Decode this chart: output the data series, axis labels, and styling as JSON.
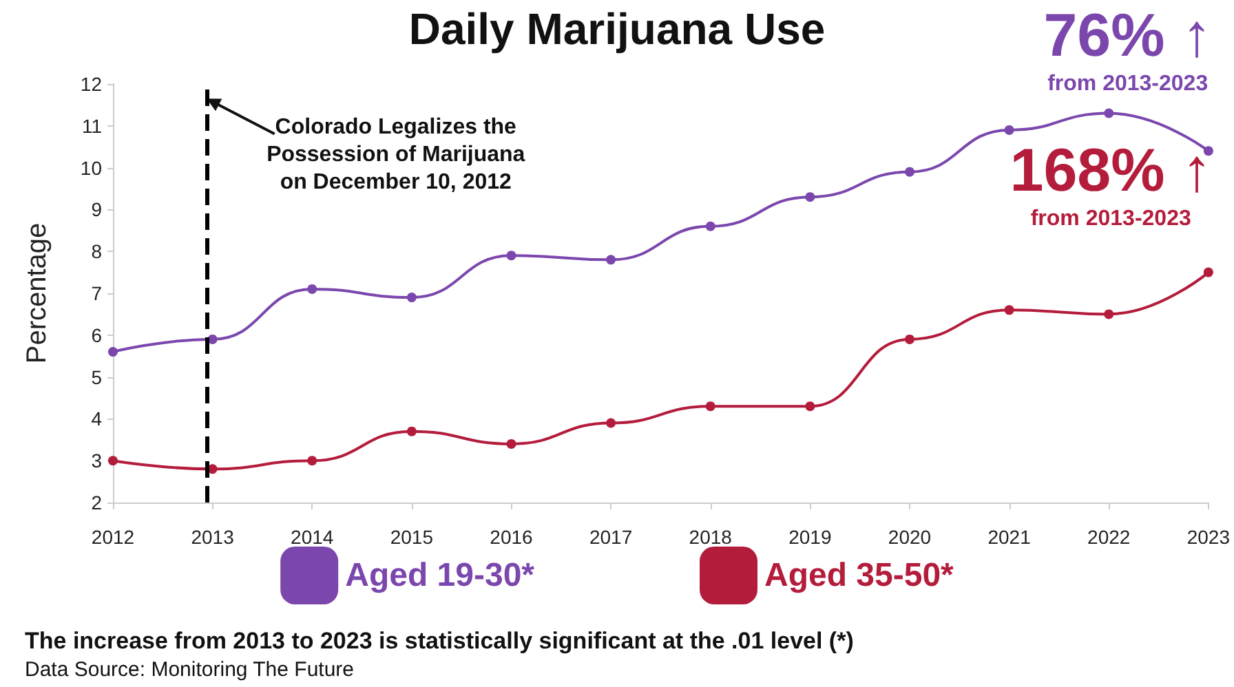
{
  "chart_data": {
    "type": "line",
    "title": "Daily Marijuana Use",
    "ylabel": "Percentage",
    "x": [
      2012,
      2013,
      2014,
      2015,
      2016,
      2017,
      2018,
      2019,
      2020,
      2021,
      2022,
      2023
    ],
    "series": [
      {
        "name": "Aged 19-30*",
        "color": "#7b47ad",
        "values": [
          5.6,
          5.9,
          7.1,
          6.9,
          7.9,
          7.8,
          8.6,
          9.3,
          9.9,
          10.9,
          11.3,
          10.4
        ]
      },
      {
        "name": "Aged 35-50*",
        "color": "#b41c3c",
        "values": [
          3.0,
          2.8,
          3.0,
          3.7,
          3.4,
          3.9,
          4.3,
          4.3,
          5.9,
          6.6,
          6.5,
          7.5
        ]
      }
    ],
    "xlim": [
      2012,
      2023
    ],
    "xticks": [
      2012,
      2013,
      2014,
      2015,
      2016,
      2017,
      2018,
      2019,
      2020,
      2021,
      2022,
      2023
    ],
    "ylim": [
      2,
      12
    ],
    "yticks": [
      2,
      3,
      4,
      5,
      6,
      7,
      8,
      9,
      10,
      11,
      12
    ],
    "ref_lines": [
      {
        "axis": "x",
        "value": 2012.94,
        "label": "Colorado Legalizes the\nPossession of Marijuana\non December 10, 2012",
        "color": "#000000",
        "line_style": "dashed"
      }
    ],
    "annotations": [
      "76% ↑\nfrom 2013-2023",
      "168% ↑\nfrom 2013-2023",
      "The increase from 2013 to 2023 is statistically significant at the .01 level (*)",
      "Data Source: Monitoring The Future"
    ],
    "legend": "bottom",
    "marker": "circle",
    "line_style": "solid",
    "grid": false
  }
}
